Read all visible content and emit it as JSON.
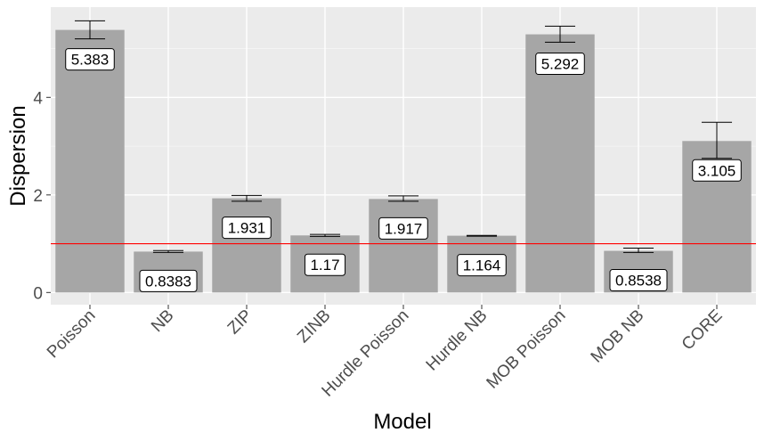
{
  "chart_data": {
    "type": "bar",
    "title": "",
    "xlabel": "Model",
    "ylabel": "Dispersion",
    "categories": [
      "Poisson",
      "NB",
      "ZIP",
      "ZINB",
      "Hurdle Poisson",
      "Hurdle NB",
      "MOB Poisson",
      "MOB NB",
      "CORE"
    ],
    "values": [
      5.383,
      0.8383,
      1.931,
      1.17,
      1.917,
      1.164,
      5.292,
      0.8538,
      3.105
    ],
    "value_labels": [
      "5.383",
      "0.8383",
      "1.931",
      "1.17",
      "1.917",
      "1.164",
      "5.292",
      "0.8538",
      "3.105"
    ],
    "error_low": [
      5.2,
      0.82,
      1.87,
      1.15,
      1.87,
      1.155,
      5.13,
      0.82,
      2.75
    ],
    "error_high": [
      5.57,
      0.86,
      1.99,
      1.19,
      1.98,
      1.17,
      5.46,
      0.91,
      3.49
    ],
    "reference_line": 1,
    "ylim": [
      -0.25,
      5.85
    ],
    "yticks": [
      0,
      2,
      4
    ],
    "grid": true,
    "legend": "none",
    "colors": {
      "bar": "#a6a6a6",
      "panel": "#ebebeb",
      "grid_major": "#ffffff",
      "reference_line": "#ff0000",
      "error_bar": "#000000"
    }
  }
}
